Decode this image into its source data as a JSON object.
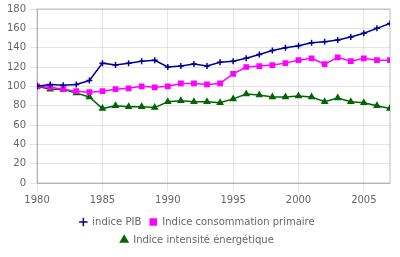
{
  "chart_data": {
    "type": "line",
    "x": [
      1980,
      1981,
      1982,
      1983,
      1984,
      1985,
      1986,
      1987,
      1988,
      1989,
      1990,
      1991,
      1992,
      1993,
      1994,
      1995,
      1996,
      1997,
      1998,
      1999,
      2000,
      2001,
      2002,
      2003,
      2004,
      2005,
      2006,
      2007
    ],
    "series": [
      {
        "name": "indice PIB",
        "color": "#000099",
        "marker": "plus",
        "values": [
          100,
          102,
          101,
          102,
          106,
          124,
          122,
          124,
          126,
          127,
          120,
          121,
          123,
          121,
          125,
          126,
          129,
          133,
          137,
          140,
          142,
          145,
          146,
          148,
          151,
          155,
          160,
          165
        ]
      },
      {
        "name": "Indice consommation primaire",
        "color": "#FF00FF",
        "marker": "square",
        "values": [
          100,
          99,
          97,
          95,
          94,
          95,
          97,
          98,
          100,
          99,
          100,
          103,
          103,
          102,
          103,
          113,
          120,
          121,
          122,
          124,
          127,
          129,
          123,
          130,
          126,
          129,
          127,
          127
        ]
      },
      {
        "name": "Indice intensité énergétique",
        "color": "#006600",
        "marker": "triangle",
        "values": [
          100,
          97,
          97,
          93,
          89,
          77,
          80,
          79,
          79,
          78,
          84,
          85,
          84,
          84,
          83,
          87,
          92,
          91,
          89,
          89,
          90,
          89,
          84,
          88,
          84,
          83,
          80,
          77
        ]
      }
    ],
    "xlim": [
      1980,
      2007
    ],
    "xticks": [
      1980,
      1985,
      1990,
      1995,
      2000,
      2005
    ],
    "ylim": [
      0,
      180
    ],
    "yticks": [
      0,
      20,
      40,
      60,
      80,
      100,
      120,
      140,
      160,
      180
    ],
    "grid": true,
    "legend": "bottom"
  }
}
